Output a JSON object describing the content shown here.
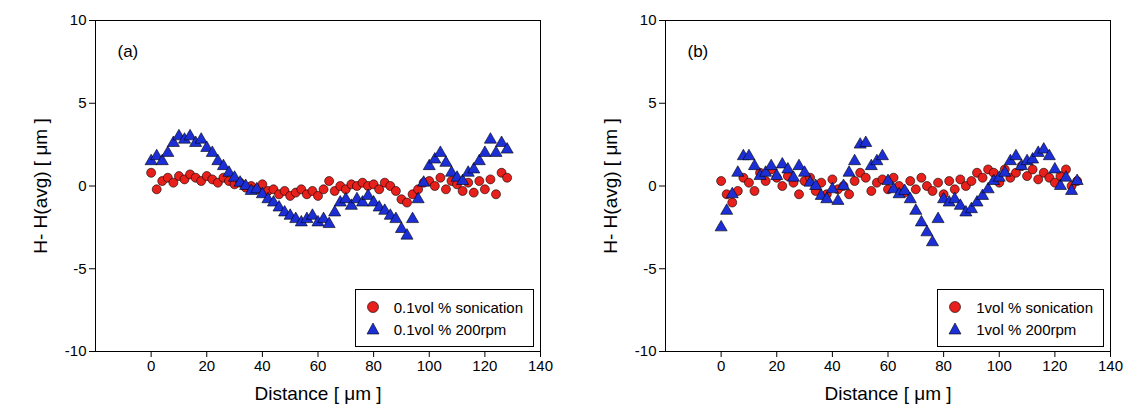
{
  "chart_data": [
    {
      "type": "scatter",
      "annotation": "(a)",
      "x_label": "Distance [ μm ]",
      "y_label": "H- H(avg) [ μm ]",
      "xlim": [
        -20,
        140
      ],
      "xticks": [
        0,
        20,
        40,
        60,
        80,
        100,
        120,
        140
      ],
      "ylim": [
        -10,
        10
      ],
      "yticks": [
        -10,
        -5,
        0,
        5,
        10
      ],
      "grid": false,
      "legend": "lower right",
      "x": [
        0,
        2,
        4,
        6,
        8,
        10,
        12,
        14,
        16,
        18,
        20,
        22,
        24,
        26,
        28,
        30,
        32,
        34,
        36,
        38,
        40,
        42,
        44,
        46,
        48,
        50,
        52,
        54,
        56,
        58,
        60,
        62,
        64,
        66,
        68,
        70,
        72,
        74,
        76,
        78,
        80,
        82,
        84,
        86,
        88,
        90,
        92,
        94,
        96,
        98,
        100,
        102,
        104,
        106,
        108,
        110,
        112,
        114,
        116,
        118,
        120,
        122,
        124,
        126,
        128
      ],
      "series": [
        {
          "name": "0.1vol % sonication",
          "color": "#e8201c",
          "marker": "circle",
          "values": [
            0.8,
            -0.2,
            0.3,
            0.5,
            0.2,
            0.6,
            0.4,
            0.7,
            0.5,
            0.3,
            0.6,
            0.4,
            0.2,
            0.5,
            0.3,
            0.1,
            0.2,
            -0.1,
            0.0,
            -0.2,
            0.1,
            -0.3,
            -0.2,
            -0.5,
            -0.3,
            -0.6,
            -0.4,
            -0.2,
            -0.5,
            -0.3,
            -0.6,
            -0.2,
            0.3,
            -0.3,
            0.0,
            -0.2,
            0.1,
            0.0,
            0.2,
            0.0,
            0.1,
            -0.2,
            0.2,
            0.0,
            -0.3,
            -0.8,
            -1.0,
            -0.5,
            -0.2,
            0.2,
            0.3,
            0.0,
            0.5,
            -0.2,
            0.3,
            0.1,
            -0.3,
            0.2,
            -0.4,
            0.3,
            -0.2,
            0.4,
            -0.5,
            0.8,
            0.5
          ]
        },
        {
          "name": "0.1vol % 200rpm",
          "color": "#1c2fd6",
          "marker": "triangle",
          "values": [
            1.5,
            1.8,
            1.5,
            2.0,
            2.6,
            3.0,
            2.8,
            3.0,
            2.6,
            2.8,
            2.3,
            2.0,
            1.5,
            1.2,
            0.8,
            0.5,
            0.2,
            0.0,
            -0.3,
            -0.2,
            -0.5,
            -0.8,
            -1.0,
            -1.3,
            -1.6,
            -1.8,
            -2.0,
            -2.2,
            -2.0,
            -1.8,
            -2.2,
            -2.0,
            -2.3,
            -1.6,
            -1.0,
            -0.8,
            -1.2,
            -0.8,
            -1.0,
            -0.6,
            -1.0,
            -1.3,
            -1.5,
            -1.8,
            -2.0,
            -2.6,
            -3.0,
            -2.0,
            -0.8,
            0.2,
            1.2,
            1.6,
            2.0,
            1.4,
            0.8,
            0.5,
            0.3,
            0.8,
            1.0,
            1.5,
            2.0,
            2.8,
            2.0,
            2.6,
            2.2
          ]
        }
      ]
    },
    {
      "type": "scatter",
      "annotation": "(b)",
      "x_label": "Distance [ μm ]",
      "y_label": "H- H(avg) [ μm ]",
      "xlim": [
        -20,
        140
      ],
      "xticks": [
        0,
        20,
        40,
        60,
        80,
        100,
        120,
        140
      ],
      "ylim": [
        -10,
        10
      ],
      "yticks": [
        -10,
        -5,
        0,
        5,
        10
      ],
      "grid": false,
      "legend": "lower right",
      "x": [
        0,
        2,
        4,
        6,
        8,
        10,
        12,
        14,
        16,
        18,
        20,
        22,
        24,
        26,
        28,
        30,
        32,
        34,
        36,
        38,
        40,
        42,
        44,
        46,
        48,
        50,
        52,
        54,
        56,
        58,
        60,
        62,
        64,
        66,
        68,
        70,
        72,
        74,
        76,
        78,
        80,
        82,
        84,
        86,
        88,
        90,
        92,
        94,
        96,
        98,
        100,
        102,
        104,
        106,
        108,
        110,
        112,
        114,
        116,
        118,
        120,
        122,
        124,
        126,
        128
      ],
      "series": [
        {
          "name": "1vol % sonication",
          "color": "#e8201c",
          "marker": "circle",
          "values": [
            0.3,
            -0.5,
            -1.0,
            -0.3,
            0.5,
            0.2,
            -0.3,
            0.8,
            0.3,
            1.0,
            0.5,
            0.0,
            0.6,
            0.2,
            -0.5,
            0.3,
            0.5,
            -0.3,
            0.2,
            -0.5,
            0.4,
            -0.2,
            0.0,
            -0.5,
            0.3,
            0.8,
            0.5,
            -0.3,
            0.2,
            0.4,
            -0.2,
            0.5,
            0.0,
            -0.4,
            0.3,
            -0.2,
            0.5,
            0.0,
            -0.3,
            0.2,
            -0.5,
            0.3,
            -0.2,
            0.4,
            0.0,
            0.3,
            0.8,
            0.5,
            1.0,
            0.8,
            0.2,
            1.0,
            0.5,
            0.8,
            1.2,
            0.6,
            1.0,
            0.4,
            0.8,
            0.5,
            0.2,
            0.6,
            1.0,
            0.0,
            0.3
          ]
        },
        {
          "name": "1vol % 200rpm",
          "color": "#1c2fd6",
          "marker": "triangle",
          "values": [
            -2.5,
            -1.5,
            -0.5,
            0.8,
            1.8,
            1.8,
            1.2,
            0.6,
            0.8,
            1.2,
            0.6,
            1.3,
            1.0,
            0.5,
            1.2,
            0.8,
            0.2,
            0.0,
            -0.6,
            -0.8,
            -0.2,
            -0.9,
            0.0,
            0.8,
            1.5,
            2.5,
            2.6,
            1.2,
            1.5,
            1.8,
            0.3,
            -0.2,
            -0.5,
            -0.3,
            -0.8,
            -1.5,
            -2.2,
            -2.8,
            -3.4,
            -2.0,
            -0.8,
            -1.0,
            -0.8,
            -1.2,
            -1.6,
            -1.4,
            -1.0,
            -0.6,
            -0.2,
            0.3,
            0.5,
            0.8,
            1.5,
            1.8,
            1.2,
            1.5,
            1.6,
            2.0,
            2.2,
            1.8,
            1.0,
            0.0,
            0.5,
            -0.3,
            0.3
          ]
        }
      ]
    }
  ]
}
